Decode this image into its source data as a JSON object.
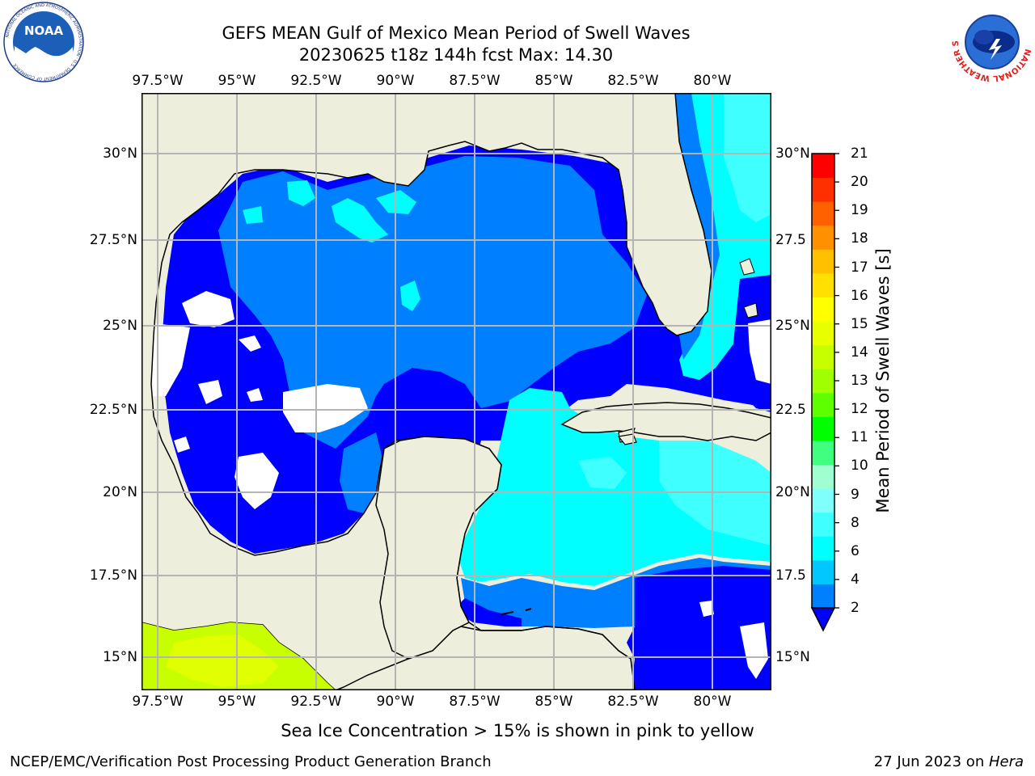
{
  "header": {
    "title_line1": "GEFS MEAN Gulf of Mexico Mean Period of Swell Waves",
    "title_line2": "20230625 t18z 144h fcst   Max: 14.30"
  },
  "logos": {
    "noaa_text": "NOAA",
    "noaa_ring_text": "NATIONAL OCEANIC AND ATMOSPHERIC ADMINISTRATION · U.S. DEPARTMENT OF COMMERCE",
    "nws_ring_text": "NATIONAL WEATHER SERVICE"
  },
  "map": {
    "lon_labels": [
      "97.5°W",
      "95°W",
      "92.5°W",
      "90°W",
      "87.5°W",
      "85°W",
      "82.5°W",
      "80°W"
    ],
    "lat_labels_left": [
      "30°N",
      "27.5°N",
      "25°N",
      "22.5°N",
      "20°N",
      "17.5°N",
      "15°N"
    ],
    "lat_labels_right": [
      "30°N",
      "27.5",
      "25°N",
      "22.5",
      "20°N",
      "17.5",
      "15°N"
    ],
    "colors": {
      "land": "#eeeedc",
      "deep_blue": "#0000ff",
      "blue": "#0080ff",
      "cyan": "#00ffff",
      "light_cyan": "#40ffff",
      "yellow_green": "#c8ff00",
      "green_yellow": "#e0ff00",
      "coast": "#000000",
      "grid": "#b4b4b4"
    }
  },
  "colorbar": {
    "label": "Mean Period of Swell Waves [s]",
    "ticks": [
      "2",
      "4",
      "6",
      "8",
      "9",
      "10",
      "11",
      "12",
      "13",
      "14",
      "15",
      "16",
      "17",
      "18",
      "19",
      "20",
      "21"
    ],
    "colors": [
      "#0080ff",
      "#00c8ff",
      "#00ffff",
      "#40ffff",
      "#80ffff",
      "#a0ffd0",
      "#40ff80",
      "#00ff00",
      "#60ff00",
      "#a0ff00",
      "#c8ff00",
      "#e8ff00",
      "#ffff00",
      "#ffe000",
      "#ffc000",
      "#ff9000",
      "#ff6000",
      "#ff3000",
      "#ff0000"
    ],
    "extend_color": "#0000ff"
  },
  "note": "Sea Ice Concentration > 15% is shown in pink to yellow",
  "footer": {
    "left": "NCEP/EMC/Verification Post Processing Product Generation Branch",
    "right_date": "27 Jun 2023 on ",
    "right_host": "Hera"
  }
}
